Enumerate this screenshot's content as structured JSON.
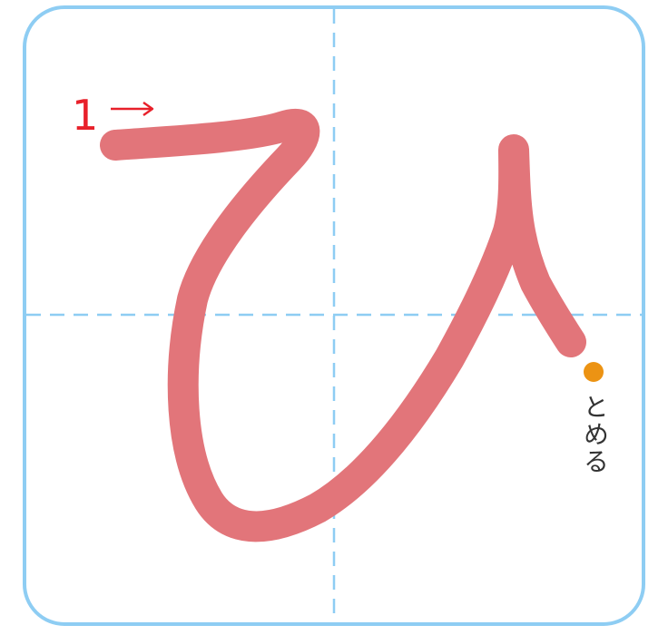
{
  "guide": {
    "stroke_number": "1",
    "end_label": "とめる",
    "arrow_icon": "right-arrow-icon"
  },
  "colors": {
    "frame": "#8ecdf3",
    "guide_dash": "#8ecdf3",
    "stroke": "#e2757a",
    "stroke_number": "#e8202a",
    "end_dot": "#ec9313",
    "label_text": "#333333"
  }
}
